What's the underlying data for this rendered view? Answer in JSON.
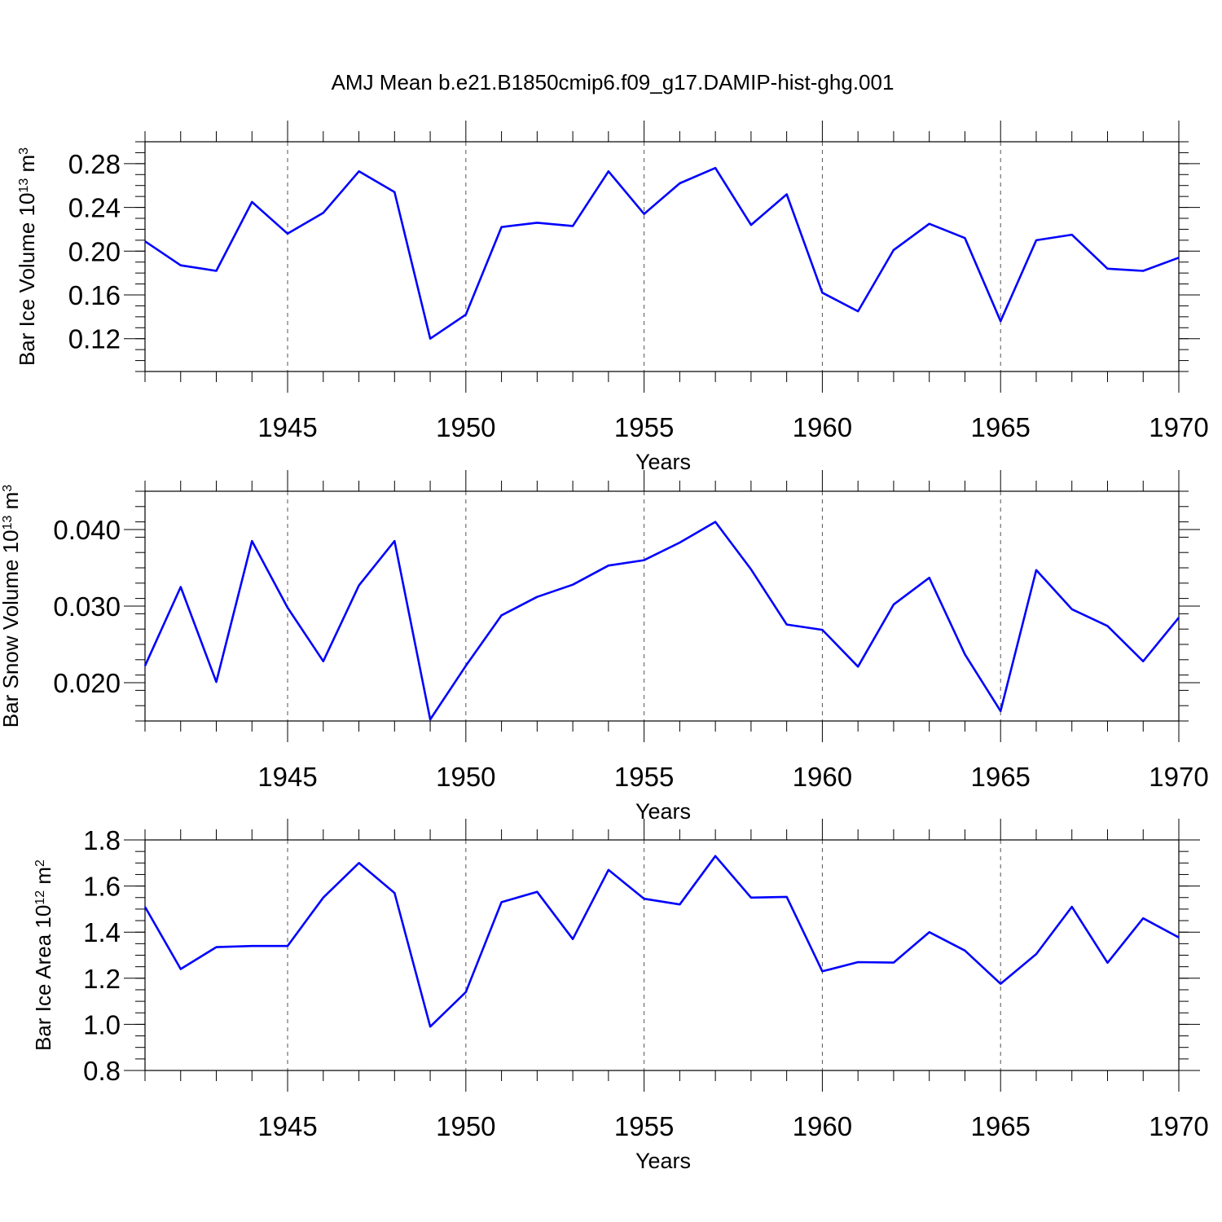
{
  "title": "AMJ Mean b.e21.B1850cmip6.f09_g17.DAMIP-hist-ghg.001",
  "colors": {
    "line": "#0000ff",
    "axes": "#000000",
    "grid": "#555555"
  },
  "chart_data": [
    {
      "type": "line",
      "ylabel_main": "Bar Ice Volume 10",
      "ylabel_exp": "13",
      "ylabel_unit": " m",
      "ylabel_unit_exp": "3",
      "xlabel": "Years",
      "xlim": [
        1941,
        1970
      ],
      "ylim": [
        0.09,
        0.3
      ],
      "x_ticks": [
        1945,
        1950,
        1955,
        1960,
        1965,
        1970
      ],
      "x_tick_labels": [
        "1945",
        "1950",
        "1955",
        "1960",
        "1965",
        "1970"
      ],
      "y_ticks": [
        0.12,
        0.16,
        0.2,
        0.24,
        0.28
      ],
      "y_tick_labels": [
        "0.12",
        "0.16",
        "0.20",
        "0.24",
        "0.28"
      ],
      "y_minor_step": 0.01,
      "x": [
        1941,
        1942,
        1943,
        1944,
        1945,
        1946,
        1947,
        1948,
        1949,
        1950,
        1951,
        1952,
        1953,
        1954,
        1955,
        1956,
        1957,
        1958,
        1959,
        1960,
        1961,
        1962,
        1963,
        1964,
        1965,
        1966,
        1967,
        1968,
        1969,
        1970
      ],
      "values": [
        0.209,
        0.187,
        0.182,
        0.245,
        0.216,
        0.235,
        0.273,
        0.254,
        0.12,
        0.142,
        0.222,
        0.226,
        0.223,
        0.273,
        0.234,
        0.262,
        0.276,
        0.224,
        0.252,
        0.162,
        0.145,
        0.201,
        0.225,
        0.212,
        0.136,
        0.21,
        0.215,
        0.184,
        0.182,
        0.194
      ]
    },
    {
      "type": "line",
      "ylabel_main": "Bar Snow Volume 10",
      "ylabel_exp": "13",
      "ylabel_unit": " m",
      "ylabel_unit_exp": "3",
      "xlabel": "Years",
      "xlim": [
        1941,
        1970
      ],
      "ylim": [
        0.015,
        0.045
      ],
      "x_ticks": [
        1945,
        1950,
        1955,
        1960,
        1965,
        1970
      ],
      "x_tick_labels": [
        "1945",
        "1950",
        "1955",
        "1960",
        "1965",
        "1970"
      ],
      "y_ticks": [
        0.02,
        0.03,
        0.04
      ],
      "y_tick_labels": [
        "0.020",
        "0.030",
        "0.040"
      ],
      "y_minor_step": 0.002,
      "x": [
        1941,
        1942,
        1943,
        1944,
        1945,
        1946,
        1947,
        1948,
        1949,
        1950,
        1951,
        1952,
        1953,
        1954,
        1955,
        1956,
        1957,
        1958,
        1959,
        1960,
        1961,
        1962,
        1963,
        1964,
        1965,
        1966,
        1967,
        1968,
        1969,
        1970
      ],
      "values": [
        0.0222,
        0.0325,
        0.0201,
        0.0385,
        0.0298,
        0.0228,
        0.0327,
        0.0385,
        0.0152,
        0.0222,
        0.0288,
        0.0312,
        0.0328,
        0.0353,
        0.036,
        0.0383,
        0.041,
        0.0348,
        0.0276,
        0.0269,
        0.0221,
        0.0302,
        0.0337,
        0.0237,
        0.0163,
        0.0347,
        0.0296,
        0.0274,
        0.0228,
        0.0285
      ]
    },
    {
      "type": "line",
      "ylabel_main": "Bar Ice Area 10",
      "ylabel_exp": "12",
      "ylabel_unit": " m",
      "ylabel_unit_exp": "2",
      "xlabel": "Years",
      "xlim": [
        1941,
        1970
      ],
      "ylim": [
        0.8,
        1.8
      ],
      "x_ticks": [
        1945,
        1950,
        1955,
        1960,
        1965,
        1970
      ],
      "x_tick_labels": [
        "1945",
        "1950",
        "1955",
        "1960",
        "1965",
        "1970"
      ],
      "y_ticks": [
        0.8,
        1.0,
        1.2,
        1.4,
        1.6,
        1.8
      ],
      "y_tick_labels": [
        "0.8",
        "1.0",
        "1.2",
        "1.4",
        "1.6",
        "1.8"
      ],
      "y_minor_step": 0.05,
      "x": [
        1941,
        1942,
        1943,
        1944,
        1945,
        1946,
        1947,
        1948,
        1949,
        1950,
        1951,
        1952,
        1953,
        1954,
        1955,
        1956,
        1957,
        1958,
        1959,
        1960,
        1961,
        1962,
        1963,
        1964,
        1965,
        1966,
        1967,
        1968,
        1969,
        1970
      ],
      "values": [
        1.51,
        1.24,
        1.335,
        1.34,
        1.34,
        1.55,
        1.7,
        1.57,
        0.99,
        1.14,
        1.53,
        1.575,
        1.37,
        1.67,
        1.545,
        1.52,
        1.73,
        1.55,
        1.553,
        1.23,
        1.27,
        1.268,
        1.4,
        1.32,
        1.176,
        1.305,
        1.51,
        1.267,
        1.46,
        1.377
      ]
    }
  ]
}
